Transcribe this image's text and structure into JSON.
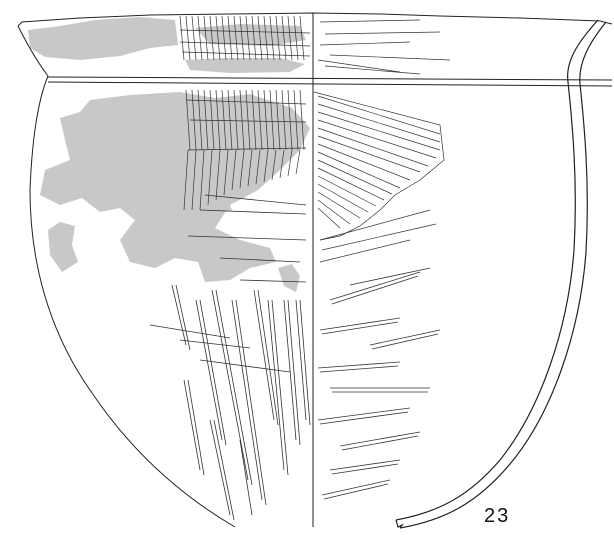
{
  "figure": {
    "number_label": "23"
  }
}
